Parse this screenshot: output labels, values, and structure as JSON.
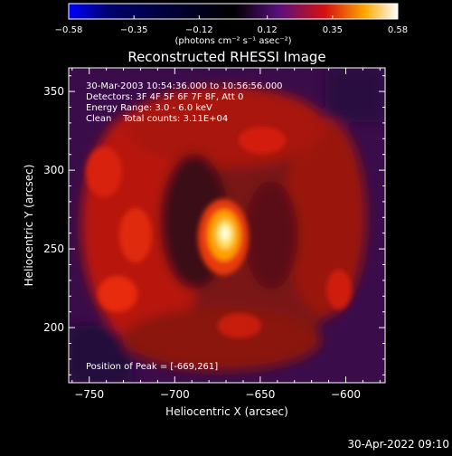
{
  "chart_data": {
    "type": "heatmap",
    "title": "Reconstructed RHESSI Image",
    "xlabel": "Heliocentric X (arcsec)",
    "ylabel": "Heliocentric Y (arcsec)",
    "xlim": [
      -762,
      -577
    ],
    "ylim": [
      165,
      365
    ],
    "x_ticks": [
      -750,
      -700,
      -650,
      -600
    ],
    "y_ticks": [
      200,
      250,
      300,
      350
    ],
    "x_tick_labels": [
      "−750",
      "−700",
      "−650",
      "−600"
    ],
    "y_tick_labels": [
      "200",
      "250",
      "300",
      "350"
    ],
    "colorbar": {
      "range": [
        -0.58,
        0.58
      ],
      "ticks": [
        -0.58,
        -0.35,
        -0.12,
        0.12,
        0.35,
        0.58
      ],
      "tick_labels": [
        "−0.58",
        "−0.35",
        "−0.12",
        "0.12",
        "0.35",
        "0.58"
      ],
      "unit_label": "(photons cm⁻² s⁻¹ asec⁻²)"
    },
    "info_lines": [
      "30-Mar-2003 10:54:36.000 to 10:56:56.000",
      "Detectors: 3F 4F 5F 6F 7F 8F, Att 0",
      "Energy Range: 3.0 - 6.0 keV",
      "Clean    Total counts: 3.11E+04"
    ],
    "peak_label": "Position of Peak = [-669,261]",
    "peak": {
      "x": -669,
      "y": 261,
      "value": 0.58
    },
    "colors": {
      "background": "#000000",
      "colormap": [
        "#0000ff",
        "#000000",
        "#5a0f7d",
        "#d81010",
        "#ffa800",
        "#ffffff"
      ]
    }
  },
  "footer_timestamp": "30-Apr-2022 09:10"
}
